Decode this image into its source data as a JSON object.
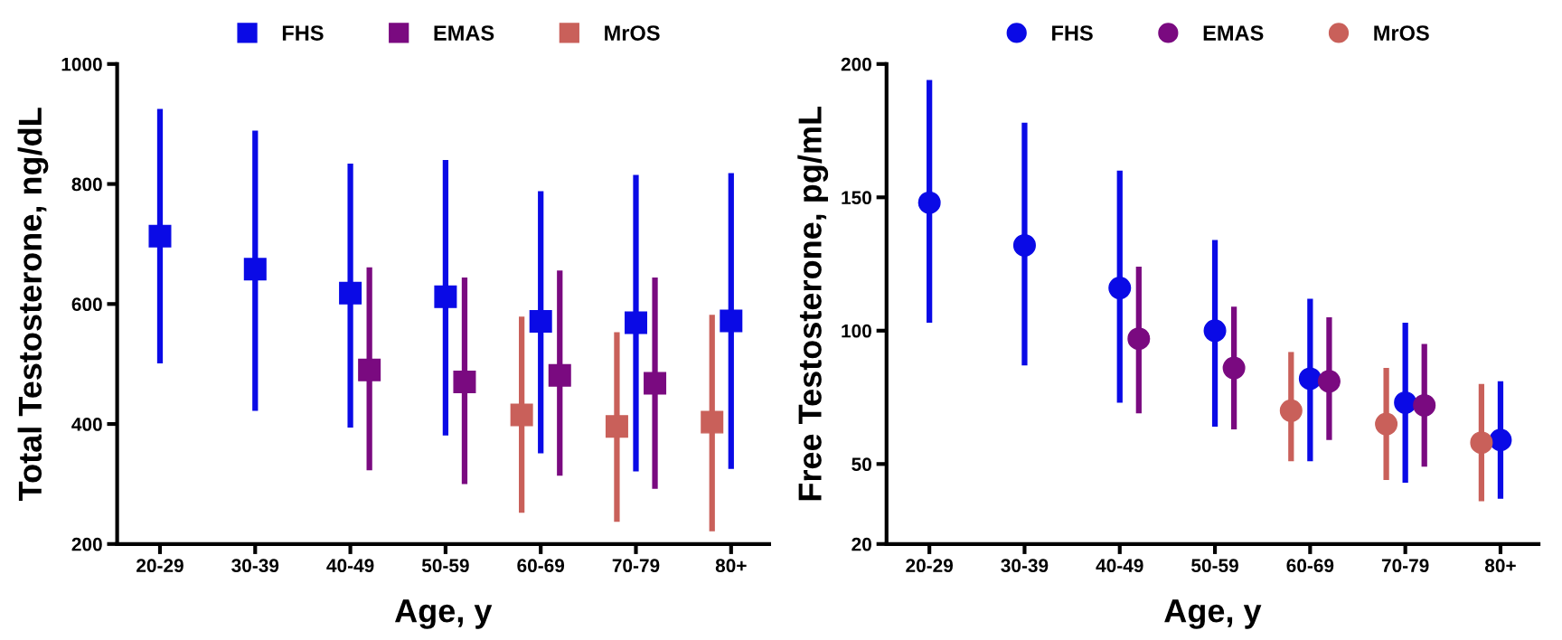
{
  "chart_data": [
    {
      "type": "scatter",
      "xlabel": "Age, y",
      "ylabel": "Total Testosterone, ng/dL",
      "categories": [
        "20-29",
        "30-39",
        "40-49",
        "50-59",
        "60-69",
        "70-79",
        "80+"
      ],
      "ylim": [
        200,
        1000
      ],
      "yticks": [
        200,
        400,
        600,
        800,
        1000
      ],
      "marker": "square",
      "legend": "top",
      "grid": false,
      "series": [
        {
          "name": "FHS",
          "color": "#0a0ae6",
          "values": [
            713,
            658,
            618,
            612,
            571,
            569,
            572
          ],
          "errors": [
            [
              501,
              925
            ],
            [
              422,
              889
            ],
            [
              394,
              834
            ],
            [
              381,
              840
            ],
            [
              351,
              788
            ],
            [
              321,
              815
            ],
            [
              325,
              818
            ]
          ]
        },
        {
          "name": "EMAS",
          "color": "#7a0a80",
          "values": [
            null,
            null,
            490,
            470,
            481,
            468,
            null
          ],
          "errors": [
            null,
            null,
            [
              323,
              661
            ],
            [
              300,
              644
            ],
            [
              314,
              656
            ],
            [
              292,
              644
            ],
            null
          ]
        },
        {
          "name": "MrOS",
          "color": "#c9605a",
          "values": [
            null,
            null,
            null,
            null,
            415,
            396,
            403
          ],
          "errors": [
            null,
            null,
            null,
            null,
            [
              252,
              579
            ],
            [
              237,
              553
            ],
            [
              221,
              582
            ]
          ]
        }
      ]
    },
    {
      "type": "scatter",
      "xlabel": "Age, y",
      "ylabel": "Free Testosterone, pg/mL",
      "categories": [
        "20-29",
        "30-39",
        "40-49",
        "50-59",
        "60-69",
        "70-79",
        "80+"
      ],
      "ylim": [
        20,
        200
      ],
      "yticks": [
        20,
        50,
        100,
        150,
        200
      ],
      "marker": "circle",
      "legend": "top",
      "grid": false,
      "series": [
        {
          "name": "FHS",
          "color": "#0a0ae6",
          "values": [
            148,
            132,
            116,
            100,
            82,
            73,
            59
          ],
          "errors": [
            [
              103,
              194
            ],
            [
              87,
              178
            ],
            [
              73,
              160
            ],
            [
              64,
              134
            ],
            [
              51,
              112
            ],
            [
              43,
              103
            ],
            [
              37,
              81
            ]
          ]
        },
        {
          "name": "EMAS",
          "color": "#7a0a80",
          "values": [
            null,
            null,
            97,
            86,
            81,
            72,
            null
          ],
          "errors": [
            null,
            null,
            [
              69,
              124
            ],
            [
              63,
              109
            ],
            [
              59,
              105
            ],
            [
              49,
              95
            ],
            null
          ]
        },
        {
          "name": "MrOS",
          "color": "#c9605a",
          "values": [
            null,
            null,
            null,
            null,
            70,
            65,
            58
          ],
          "errors": [
            null,
            null,
            null,
            null,
            [
              51,
              92
            ],
            [
              44,
              86
            ],
            [
              36,
              80
            ]
          ]
        }
      ]
    }
  ]
}
